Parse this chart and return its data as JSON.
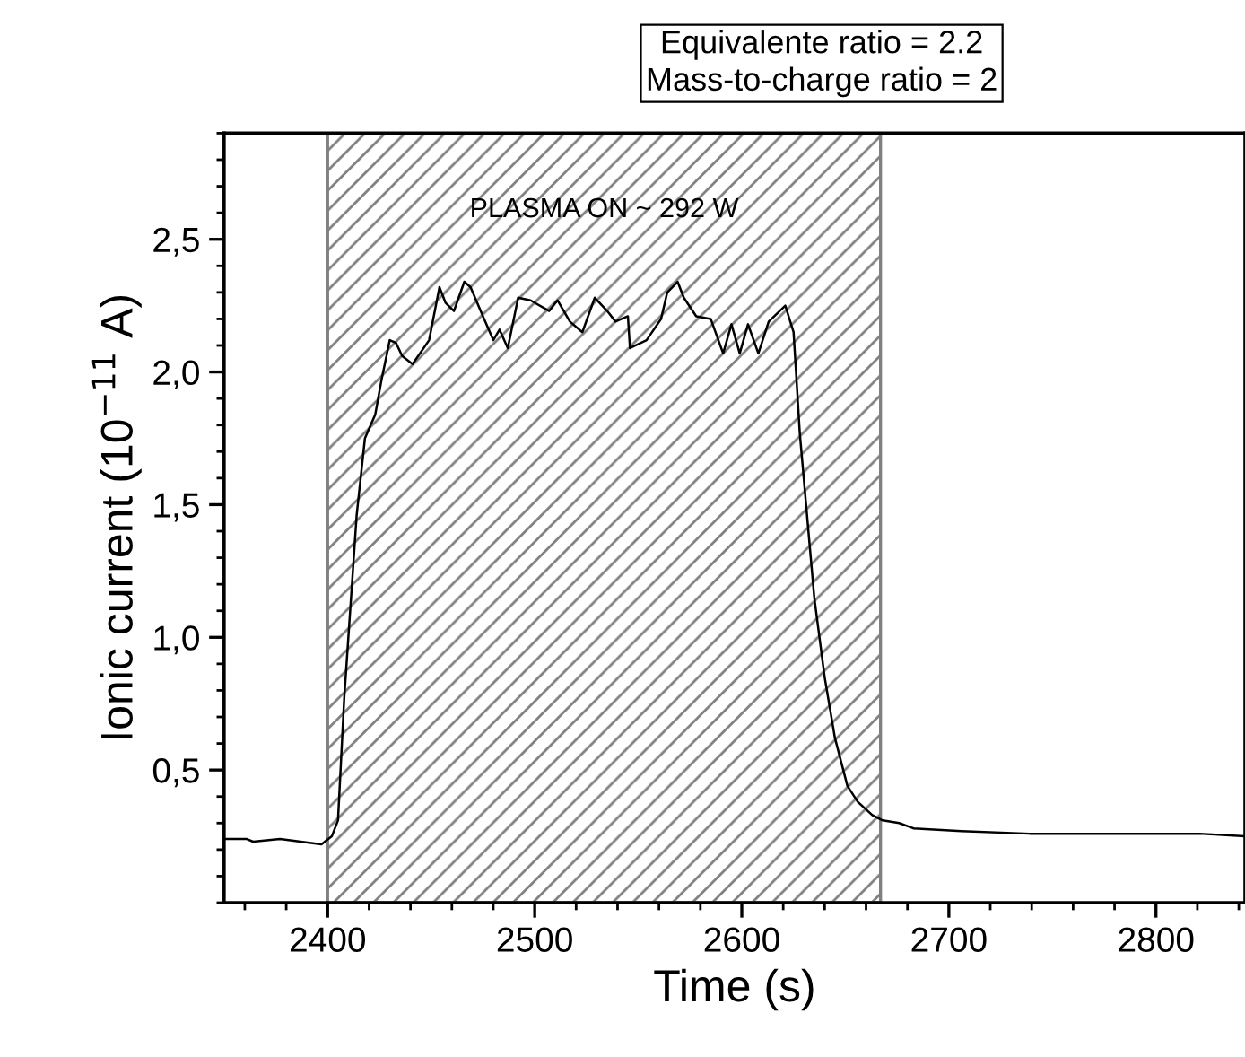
{
  "chart_data": {
    "type": "line",
    "xlabel": "Time (s)",
    "ylabel": "Ionic current (10$^{−11}$ A)",
    "annotations": [
      "Equivalente ratio = 2.2\nMass-to-charge ratio = 2"
    ],
    "x": [
      2350,
      2361,
      2364,
      2377,
      2397,
      2402,
      2405,
      2408,
      2414,
      2418,
      2423,
      2426,
      2430,
      2433,
      2436,
      2441,
      2449,
      2454,
      2457,
      2461,
      2466,
      2469,
      2475,
      2480,
      2483,
      2487,
      2492,
      2498,
      2507,
      2511,
      2517,
      2523,
      2529,
      2535,
      2539,
      2545,
      2546,
      2554,
      2561,
      2564,
      2569,
      2572,
      2578,
      2585,
      2591,
      2595,
      2599,
      2603,
      2608,
      2613,
      2621,
      2625,
      2628,
      2635,
      2640,
      2645,
      2651,
      2656,
      2663,
      2668,
      2676,
      2683,
      2706,
      2739,
      2771,
      2804,
      2821,
      2843
    ],
    "series": [
      {
        "color": "#000000",
        "values": [
          0.24,
          0.24,
          0.23,
          0.24,
          0.22,
          0.25,
          0.31,
          0.77,
          1.46,
          1.75,
          1.84,
          1.97,
          2.12,
          2.11,
          2.06,
          2.03,
          2.12,
          2.32,
          2.26,
          2.23,
          2.34,
          2.32,
          2.21,
          2.12,
          2.16,
          2.09,
          2.28,
          2.27,
          2.23,
          2.27,
          2.19,
          2.15,
          2.28,
          2.23,
          2.19,
          2.21,
          2.09,
          2.12,
          2.2,
          2.3,
          2.34,
          2.28,
          2.21,
          2.2,
          2.07,
          2.18,
          2.07,
          2.18,
          2.07,
          2.19,
          2.25,
          2.15,
          1.77,
          1.15,
          0.85,
          0.62,
          0.44,
          0.38,
          0.33,
          0.31,
          0.3,
          0.28,
          0.27,
          0.26,
          0.26,
          0.26,
          0.26,
          0.25
        ]
      }
    ],
    "xlim": [
      2350,
      2843
    ],
    "xticks": [
      2400,
      2500,
      2600,
      2700,
      2800
    ],
    "ylim": [
      0,
      2.9
    ],
    "yticks": [
      {
        "value": 0.5,
        "label": "0,5"
      },
      {
        "value": 1.0,
        "label": "1,0"
      },
      {
        "value": 1.5,
        "label": "1,5"
      },
      {
        "value": 2.0,
        "label": "2,0"
      },
      {
        "value": 2.5,
        "label": "2,5"
      }
    ],
    "bands": [
      {
        "axis": "x",
        "from": 2400,
        "to": 2667,
        "label": "PLASMA ON ~ 292 W",
        "color": "#808080"
      }
    ],
    "grid": false,
    "legend": false,
    "marker": "none",
    "line_style": "solid"
  }
}
